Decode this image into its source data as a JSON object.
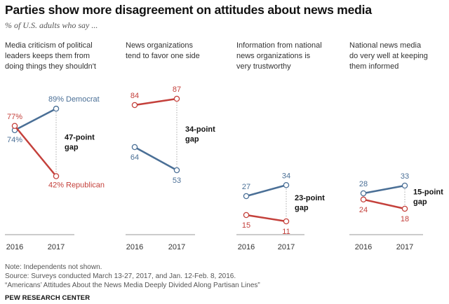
{
  "title": "Parties show more disagreement  on attitudes about news media",
  "subtitle": "% of U.S. adults who say ...",
  "colors": {
    "democrat": "#4a6f96",
    "republican": "#c4403b",
    "axis": "#999999",
    "gap_line": "#aaaaaa"
  },
  "chart_data": [
    {
      "type": "line",
      "title": "Media criticism of political leaders keeps them from doing things they shouldn't",
      "title_lines": [
        "Media criticism of political",
        "leaders keeps them from",
        "doing things they shouldn't"
      ],
      "x": [
        "2016",
        "2017"
      ],
      "series": [
        {
          "name": "Democrat",
          "values": [
            74,
            89
          ],
          "labels": [
            "74%",
            "89%"
          ]
        },
        {
          "name": "Republican",
          "values": [
            77,
            42
          ],
          "labels": [
            "77%",
            "42%"
          ]
        }
      ],
      "gap_label": [
        "47-point",
        "gap"
      ]
    },
    {
      "type": "line",
      "title": "News organizations tend to favor one side",
      "title_lines": [
        "News organizations",
        "tend to favor one side"
      ],
      "x": [
        "2016",
        "2017"
      ],
      "series": [
        {
          "values": [
            64,
            53
          ],
          "labels": [
            "64",
            "53"
          ]
        },
        {
          "values": [
            84,
            87
          ],
          "labels": [
            "84",
            "87"
          ]
        }
      ],
      "gap_label": [
        "34-point",
        "gap"
      ]
    },
    {
      "type": "line",
      "title": "Information from national news organizations is very trustworthy",
      "title_lines": [
        "Information from national",
        "news organizations is",
        "very trustworthy"
      ],
      "x": [
        "2016",
        "2017"
      ],
      "series": [
        {
          "values": [
            27,
            34
          ],
          "labels": [
            "27",
            "34"
          ]
        },
        {
          "values": [
            15,
            11
          ],
          "labels": [
            "15",
            "11"
          ]
        }
      ],
      "gap_label": [
        "23-point",
        "gap"
      ]
    },
    {
      "type": "line",
      "title": "National news media do very well at keeping them informed",
      "title_lines": [
        "National news media",
        "do very well at keeping",
        "them informed"
      ],
      "x": [
        "2016",
        "2017"
      ],
      "series": [
        {
          "values": [
            28,
            33
          ],
          "labels": [
            "28",
            "33"
          ]
        },
        {
          "values": [
            24,
            18
          ],
          "labels": [
            "24",
            "18"
          ]
        }
      ],
      "gap_label": [
        "15-point",
        "gap"
      ]
    }
  ],
  "notes": [
    "Note: Independents not shown.",
    "Source: Surveys conducted March 13-27, 2017, and Jan. 12-Feb. 8, 2016.",
    "“Americans’ Attitudes About the News Media Deeply Divided Along Partisan Lines”"
  ],
  "brand": "PEW RESEARCH CENTER"
}
